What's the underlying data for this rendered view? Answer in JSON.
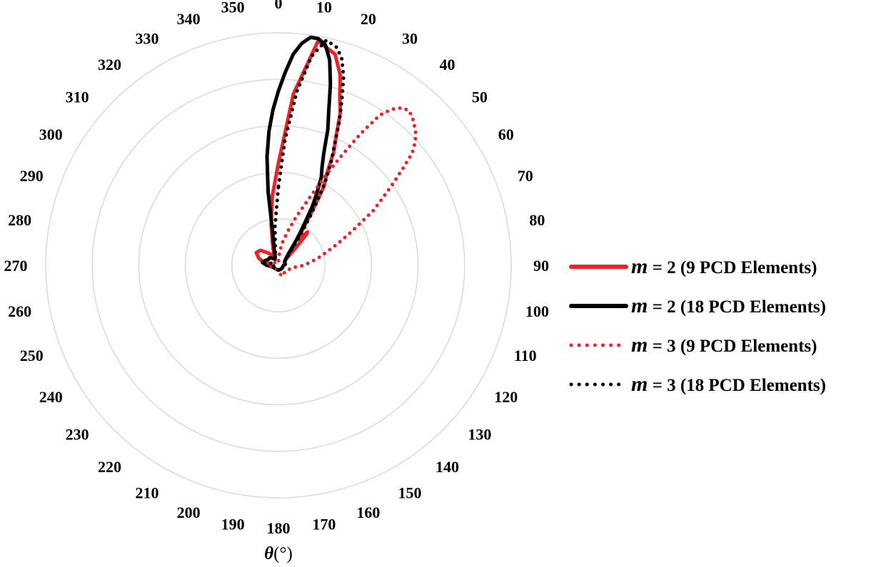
{
  "chart_data": {
    "type": "polar-line",
    "angle_unit": "degrees",
    "angle_direction": "clockwise",
    "zero_location": "top",
    "angular_ticks": [
      "0",
      "10",
      "20",
      "30",
      "40",
      "50",
      "60",
      "70",
      "80",
      "90",
      "100",
      "110",
      "120",
      "130",
      "140",
      "150",
      "160",
      "170",
      "180",
      "190",
      "200",
      "210",
      "220",
      "230",
      "240",
      "250",
      "260",
      "270",
      "280",
      "290",
      "300",
      "310",
      "320",
      "330",
      "340",
      "350"
    ],
    "angular_axis_label": {
      "symbol": "θ",
      "unit": "(°)"
    },
    "radial_range": [
      0,
      1
    ],
    "radial_gridlines": [
      0.2,
      0.4,
      0.6,
      0.8,
      1.0
    ],
    "grid": true,
    "legend_position": "right",
    "series": [
      {
        "name": "m = 2 (9 PCD Elements)",
        "legend_prefix": "m",
        "legend_rest": " = 2 (9 PCD Elements)",
        "color": "#e8262a",
        "dash": "solid",
        "width": 5,
        "theta": [
          0,
          5,
          10,
          15,
          18,
          20,
          22,
          24,
          26,
          28,
          30,
          32,
          34,
          36,
          38,
          40,
          41,
          42,
          43,
          44,
          45,
          46,
          48,
          52,
          60,
          80,
          100,
          130,
          160,
          180,
          200,
          230,
          260,
          270,
          280,
          290,
          300,
          310,
          320,
          330,
          335,
          340,
          345,
          350,
          355,
          360
        ],
        "r": [
          0.44,
          0.74,
          0.98,
          0.94,
          0.86,
          0.77,
          0.71,
          0.61,
          0.54,
          0.44,
          0.39,
          0.27,
          0.19,
          0.15,
          0.14,
          0.17,
          0.19,
          0.18,
          0.15,
          0.12,
          0.1,
          0.08,
          0.06,
          0.04,
          0.03,
          0.03,
          0.02,
          0.02,
          0.02,
          0.02,
          0.02,
          0.02,
          0.03,
          0.04,
          0.06,
          0.09,
          0.11,
          0.1,
          0.07,
          0.05,
          0.04,
          0.06,
          0.1,
          0.18,
          0.3,
          0.44
        ]
      },
      {
        "name": "m = 2 (18 PCD Elements)",
        "legend_prefix": "m",
        "legend_rest": " = 2 (18 PCD Elements)",
        "color": "#000000",
        "dash": "solid",
        "width": 5,
        "theta": [
          0,
          2,
          4,
          6,
          8,
          10,
          12,
          14,
          16,
          18,
          20,
          22,
          24,
          26,
          28,
          30,
          32,
          34,
          36,
          38,
          40,
          45,
          50,
          60,
          80,
          100,
          130,
          160,
          180,
          200,
          230,
          260,
          270,
          280,
          290,
          300,
          310,
          320,
          330,
          340,
          345,
          350,
          352,
          354,
          356,
          358,
          360
        ],
        "r": [
          0.75,
          0.83,
          0.91,
          0.96,
          0.99,
          0.99,
          0.97,
          0.91,
          0.81,
          0.7,
          0.62,
          0.52,
          0.46,
          0.42,
          0.35,
          0.29,
          0.21,
          0.16,
          0.12,
          0.09,
          0.07,
          0.05,
          0.04,
          0.03,
          0.03,
          0.02,
          0.02,
          0.02,
          0.02,
          0.02,
          0.02,
          0.03,
          0.05,
          0.07,
          0.06,
          0.05,
          0.05,
          0.04,
          0.03,
          0.04,
          0.07,
          0.14,
          0.32,
          0.47,
          0.58,
          0.67,
          0.75
        ]
      },
      {
        "name": "m = 3 (9 PCD Elements)",
        "legend_prefix": "m",
        "legend_rest": " = 3 (9 PCD Elements)",
        "color": "#e8262a",
        "dash": "dotted",
        "width": 5,
        "theta": [
          0,
          5,
          10,
          15,
          20,
          25,
          28,
          30,
          32,
          34,
          36,
          38,
          40,
          42,
          44,
          46,
          48,
          50,
          52,
          55,
          60,
          65,
          70,
          75,
          80,
          90,
          100,
          110,
          120,
          140,
          160,
          180,
          200,
          240,
          270,
          280,
          290,
          300,
          320,
          340,
          360
        ],
        "r": [
          0.02,
          0.06,
          0.1,
          0.15,
          0.22,
          0.33,
          0.45,
          0.55,
          0.67,
          0.78,
          0.83,
          0.86,
          0.87,
          0.86,
          0.84,
          0.82,
          0.79,
          0.75,
          0.68,
          0.59,
          0.47,
          0.35,
          0.27,
          0.21,
          0.17,
          0.11,
          0.06,
          0.05,
          0.04,
          0.04,
          0.05,
          0.03,
          0.02,
          0.02,
          0.04,
          0.05,
          0.03,
          0.02,
          0.02,
          0.02,
          0.02
        ]
      },
      {
        "name": "m = 3 (18 PCD Elements)",
        "legend_prefix": "m",
        "legend_rest": " = 3 (18 PCD Elements)",
        "color": "#000000",
        "dash": "dotted",
        "width": 5,
        "theta": [
          0,
          3,
          6,
          9,
          12,
          15,
          17,
          19,
          21,
          23,
          25,
          27,
          29,
          31,
          33,
          35,
          37,
          40,
          45,
          50,
          60,
          80,
          100,
          130,
          160,
          180,
          200,
          230,
          260,
          270,
          280,
          290,
          300,
          310,
          320,
          330,
          340,
          345,
          350,
          355,
          360
        ],
        "r": [
          0.34,
          0.54,
          0.75,
          0.91,
          0.99,
          0.97,
          0.93,
          0.86,
          0.76,
          0.67,
          0.57,
          0.5,
          0.42,
          0.33,
          0.25,
          0.18,
          0.13,
          0.09,
          0.06,
          0.04,
          0.03,
          0.03,
          0.02,
          0.02,
          0.02,
          0.02,
          0.02,
          0.02,
          0.02,
          0.03,
          0.04,
          0.03,
          0.03,
          0.03,
          0.03,
          0.03,
          0.04,
          0.05,
          0.08,
          0.17,
          0.34
        ]
      }
    ]
  }
}
